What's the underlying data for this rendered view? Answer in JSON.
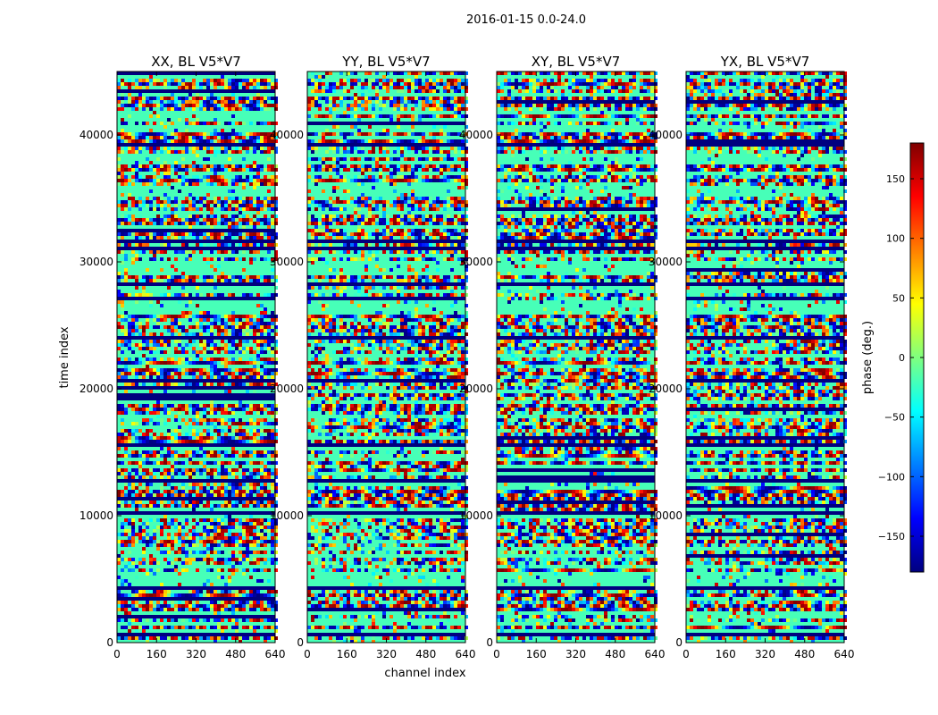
{
  "chart_data": {
    "type": "heatmap",
    "suptitle": "2016-01-15 0.0-24.0",
    "xlabel": "channel index",
    "ylabel": "time index",
    "xlim": [
      0,
      640
    ],
    "ylim": [
      0,
      45000
    ],
    "xticks": [
      0,
      160,
      320,
      480,
      640
    ],
    "yticks": [
      0,
      10000,
      20000,
      30000,
      40000
    ],
    "panels": [
      {
        "title": "XX, BL V5*V7",
        "polarization": "XX",
        "baseline": "V5*V7"
      },
      {
        "title": "YY, BL V5*V7",
        "polarization": "YY",
        "baseline": "V5*V7"
      },
      {
        "title": "XY, BL V5*V7",
        "polarization": "XY",
        "baseline": "V5*V7"
      },
      {
        "title": "YX, BL V5*V7",
        "polarization": "YX",
        "baseline": "V5*V7"
      }
    ],
    "colorbar": {
      "label": "phase (deg.)",
      "range": [
        -180,
        180
      ],
      "ticks": [
        -150,
        -100,
        -50,
        0,
        50,
        100,
        150
      ],
      "colormap": "jet",
      "colors": [
        "#00007f",
        "#0000ff",
        "#007fff",
        "#00ffff",
        "#7fff7f",
        "#ffff00",
        "#ff7f00",
        "#ff0000",
        "#7f0000"
      ]
    },
    "dominant_phase_deg": -20,
    "flagged_phase_deg": -180
  }
}
